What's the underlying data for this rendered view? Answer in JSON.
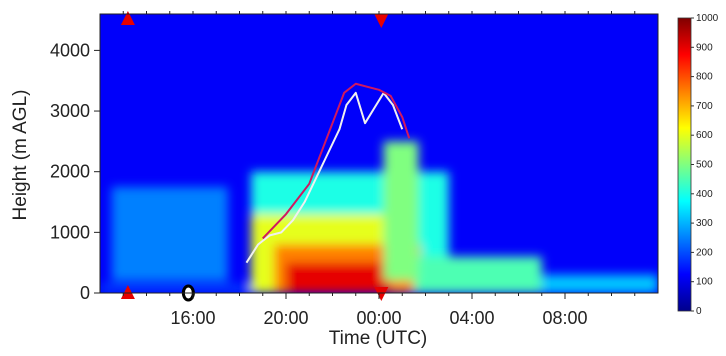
{
  "chart_data": {
    "type": "heatmap",
    "title": "",
    "xlabel": "Time (UTC)",
    "ylabel": "Height (m AGL)",
    "x_unit": "hours since 12:00 UTC",
    "x_ticks": [
      {
        "label": "16:00",
        "value": 4
      },
      {
        "label": "20:00",
        "value": 8
      },
      {
        "label": "00:00",
        "value": 12
      },
      {
        "label": "04:00",
        "value": 16
      },
      {
        "label": "08:00",
        "value": 20
      }
    ],
    "xlim": [
      0,
      24
    ],
    "y_ticks": [
      "0",
      "1000",
      "2000",
      "3000",
      "4000"
    ],
    "ylim": [
      0,
      4600
    ],
    "colorbar": {
      "ticks": [
        "0",
        "100",
        "200",
        "300",
        "400",
        "500",
        "600",
        "700",
        "800",
        "900",
        "1000"
      ],
      "range": [
        0,
        1000
      ],
      "colors": [
        "#00008b",
        "#0000ff",
        "#0080ff",
        "#00ffff",
        "#80ff80",
        "#ffff00",
        "#ff8000",
        "#ff0000",
        "#800000"
      ]
    },
    "grid": false,
    "annotations": {
      "up_triangle_time": 1.2,
      "down_triangle_time": 12.1,
      "marker_circle_time": 3.8,
      "triangle_color": "#e60000"
    },
    "series": [
      {
        "style": "white-line",
        "color": "#f0f0f0",
        "x": [
          6.3,
          6.8,
          7.3,
          7.8,
          8.3,
          8.8,
          9.3,
          9.8,
          10.3,
          10.6,
          11.0,
          11.4,
          11.8,
          12.2,
          12.6,
          13.0
        ],
        "y": [
          500,
          800,
          950,
          1000,
          1200,
          1500,
          1900,
          2300,
          2700,
          3100,
          3300,
          2800,
          3050,
          3300,
          3100,
          2700
        ]
      },
      {
        "style": "red-line",
        "color": "#d01860",
        "x": [
          7.0,
          8.0,
          9.0,
          10.0,
          10.5,
          11.0,
          11.5,
          12.0,
          12.5,
          13.0,
          13.3
        ],
        "y": [
          900,
          1300,
          1800,
          2800,
          3300,
          3450,
          3400,
          3350,
          3250,
          2900,
          2550
        ]
      }
    ],
    "intensity_regions": [
      {
        "t_start": 0,
        "t_end": 24,
        "h_start": 0,
        "h_end": 4600,
        "value": 120
      },
      {
        "t_start": 0,
        "t_end": 24,
        "h_start": 0,
        "h_end": 150,
        "value": 180
      },
      {
        "t_start": 0.5,
        "t_end": 5.5,
        "h_start": 200,
        "h_end": 1750,
        "value": 250
      },
      {
        "t_start": 6.5,
        "t_end": 15.0,
        "h_start": 0,
        "h_end": 2000,
        "value": 400
      },
      {
        "t_start": 6.5,
        "t_end": 13.5,
        "h_start": 0,
        "h_end": 1300,
        "value": 600
      },
      {
        "t_start": 7.5,
        "t_end": 13.8,
        "h_start": 0,
        "h_end": 800,
        "value": 750
      },
      {
        "t_start": 8.0,
        "t_end": 12.5,
        "h_start": 0,
        "h_end": 500,
        "value": 900
      },
      {
        "t_start": 13.5,
        "t_end": 19.0,
        "h_start": 0,
        "h_end": 600,
        "value": 450
      },
      {
        "t_start": 12.2,
        "t_end": 13.7,
        "h_start": 200,
        "h_end": 2500,
        "value": 500
      },
      {
        "t_start": 19.0,
        "t_end": 24.0,
        "h_start": 0,
        "h_end": 300,
        "value": 320
      }
    ]
  }
}
